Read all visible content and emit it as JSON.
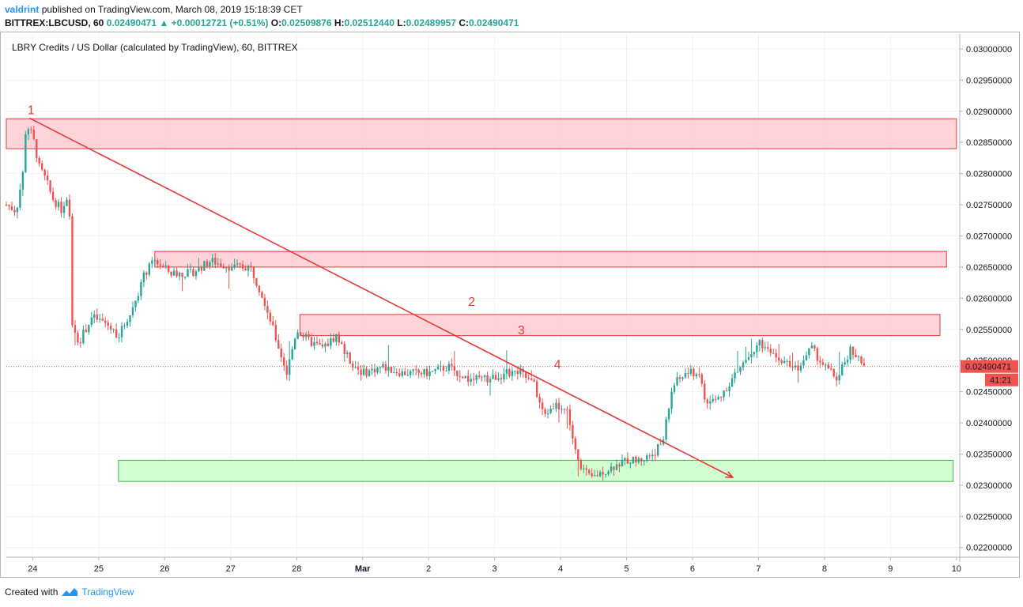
{
  "header": {
    "author": "valdrint",
    "published_text": "published on TradingView.com, March 08, 2019 15:18:39 CET",
    "symbol": "BITTREX:LBCUSD, 60",
    "last_price": "0.02490471",
    "change": "+0.00012721 (+0.51%)",
    "open_label": "O:",
    "open": "0.02509876",
    "high_label": "H:",
    "high": "0.02512440",
    "low_label": "L:",
    "low": "0.02489957",
    "close_label": "C:",
    "close": "0.02490471"
  },
  "footer": {
    "created_with": "Created with",
    "brand": "TradingView"
  },
  "colors": {
    "up": "#26a69a",
    "down": "#ef5350",
    "trendline": "#e53935",
    "resistance_fill": "#ffcdd2",
    "resistance_stroke": "#e53935",
    "support_fill": "#ccffcc",
    "support_stroke": "#4caf50",
    "grid": "#eef2f6",
    "price_tag": "#ef5350"
  },
  "chart_data": {
    "type": "candlestick",
    "title": "LBRY Credits / US Dollar (calculated by TradingView), 60, BITTREX",
    "ylim": [
      0.02187,
      0.03024
    ],
    "y_ticks": [
      "0.03000000",
      "0.02950000",
      "0.02900000",
      "0.02850000",
      "0.02800000",
      "0.02750000",
      "0.02700000",
      "0.02650000",
      "0.02600000",
      "0.02550000",
      "0.02500000",
      "0.02450000",
      "0.02400000",
      "0.02350000",
      "0.02300000",
      "0.02250000",
      "0.02200000"
    ],
    "x_range_days": [
      23.6,
      38.05
    ],
    "x_ticks": [
      {
        "day": 24,
        "label": "24"
      },
      {
        "day": 25,
        "label": "25"
      },
      {
        "day": 26,
        "label": "26"
      },
      {
        "day": 27,
        "label": "27"
      },
      {
        "day": 28,
        "label": "28"
      },
      {
        "day": 29,
        "label": "Mar"
      },
      {
        "day": 30,
        "label": "2"
      },
      {
        "day": 31,
        "label": "3"
      },
      {
        "day": 32,
        "label": "4"
      },
      {
        "day": 33,
        "label": "5"
      },
      {
        "day": 34,
        "label": "6"
      },
      {
        "day": 35,
        "label": "7"
      },
      {
        "day": 36,
        "label": "8"
      },
      {
        "day": 37,
        "label": "9"
      },
      {
        "day": 38,
        "label": "10"
      }
    ],
    "last_price_label": "0.02490471",
    "countdown_label": "41:21",
    "last_price": 0.02490471,
    "price_path": [
      [
        23.6,
        0.0275
      ],
      [
        23.75,
        0.0274
      ],
      [
        23.85,
        0.028
      ],
      [
        23.9,
        0.0288
      ],
      [
        24.0,
        0.0286
      ],
      [
        24.1,
        0.0281
      ],
      [
        24.2,
        0.0279
      ],
      [
        24.3,
        0.0276
      ],
      [
        24.45,
        0.0274
      ],
      [
        24.55,
        0.0276
      ],
      [
        24.6,
        0.0256
      ],
      [
        24.7,
        0.0253
      ],
      [
        24.9,
        0.0257
      ],
      [
        25.1,
        0.0256
      ],
      [
        25.3,
        0.0254
      ],
      [
        25.5,
        0.0258
      ],
      [
        25.7,
        0.0264
      ],
      [
        25.85,
        0.0266
      ],
      [
        26.1,
        0.0264
      ],
      [
        26.4,
        0.0264
      ],
      [
        26.7,
        0.0266
      ],
      [
        27.0,
        0.0265
      ],
      [
        27.3,
        0.0265
      ],
      [
        27.5,
        0.026
      ],
      [
        27.7,
        0.0253
      ],
      [
        27.85,
        0.0248
      ],
      [
        28.0,
        0.0255
      ],
      [
        28.2,
        0.0253
      ],
      [
        28.4,
        0.0252
      ],
      [
        28.6,
        0.0254
      ],
      [
        28.8,
        0.025
      ],
      [
        29.0,
        0.0248
      ],
      [
        29.3,
        0.0249
      ],
      [
        29.6,
        0.0248
      ],
      [
        30.0,
        0.0248
      ],
      [
        30.3,
        0.0249
      ],
      [
        30.6,
        0.0247
      ],
      [
        30.9,
        0.0247
      ],
      [
        31.2,
        0.0248
      ],
      [
        31.4,
        0.0248
      ],
      [
        31.6,
        0.0246
      ],
      [
        31.75,
        0.0241
      ],
      [
        31.9,
        0.0243
      ],
      [
        32.1,
        0.0242
      ],
      [
        32.25,
        0.0234
      ],
      [
        32.45,
        0.0231
      ],
      [
        32.6,
        0.0232
      ],
      [
        32.8,
        0.0233
      ],
      [
        33.0,
        0.0234
      ],
      [
        33.2,
        0.0234
      ],
      [
        33.4,
        0.0235
      ],
      [
        33.55,
        0.0237
      ],
      [
        33.7,
        0.0246
      ],
      [
        33.9,
        0.0248
      ],
      [
        34.1,
        0.0248
      ],
      [
        34.2,
        0.0243
      ],
      [
        34.4,
        0.0244
      ],
      [
        34.6,
        0.0247
      ],
      [
        34.8,
        0.025
      ],
      [
        35.0,
        0.0253
      ],
      [
        35.2,
        0.0251
      ],
      [
        35.4,
        0.025
      ],
      [
        35.6,
        0.0249
      ],
      [
        35.8,
        0.0252
      ],
      [
        36.0,
        0.0249
      ],
      [
        36.2,
        0.0247
      ],
      [
        36.4,
        0.0252
      ],
      [
        36.6,
        0.0249
      ]
    ],
    "annotations": {
      "resistance_zones": [
        {
          "day_start": 23.6,
          "day_end": 38.0,
          "low": 0.0284,
          "high": 0.02888
        },
        {
          "day_start": 25.85,
          "day_end": 37.85,
          "low": 0.0265,
          "high": 0.02675
        },
        {
          "day_start": 28.05,
          "day_end": 37.75,
          "low": 0.0254,
          "high": 0.02574
        }
      ],
      "support_zone": {
        "day_start": 25.3,
        "day_end": 37.95,
        "low": 0.02306,
        "high": 0.0234
      },
      "trendline": {
        "start_day": 23.95,
        "start_price": 0.02889,
        "end_day": 34.6,
        "end_price": 0.02313
      },
      "labels": [
        {
          "text": "1",
          "day": 23.92,
          "price": 0.02895
        },
        {
          "text": "2",
          "day": 30.6,
          "price": 0.02588
        },
        {
          "text": "3",
          "day": 31.35,
          "price": 0.02542
        },
        {
          "text": "4",
          "day": 31.9,
          "price": 0.02487
        }
      ]
    }
  }
}
